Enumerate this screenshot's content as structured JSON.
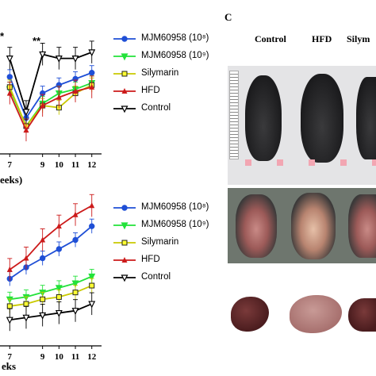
{
  "panel_c": {
    "letter": "C",
    "columns": [
      "Control",
      "HFD",
      "Silym"
    ]
  },
  "legend_top": [
    "MJM60958 (10⁸)",
    "MJM60958 (10⁹)",
    "Silymarin",
    "HFD",
    "Control"
  ],
  "legend_bottom": [
    "MJM60958 (10⁸)",
    "MJM60958 (10⁹)",
    "Silymarin",
    "HFD",
    "Control"
  ],
  "axis_top_title_fragment": "eeks)",
  "axis_bottom_title_fragment": "eks",
  "colors": {
    "mjm_1e8": "#1f4fd6",
    "mjm_1e9": "#22e23a",
    "silymarin": "#c9c900",
    "hfd": "#cc1a1a",
    "control": "#000000"
  },
  "chart_data": [
    {
      "type": "line",
      "title": "",
      "xlabel": "eeks)",
      "ylabel": "",
      "x": [
        7,
        8,
        9,
        10,
        11,
        12
      ],
      "x_tick_labels": [
        "7",
        "9",
        "10",
        "11",
        "12"
      ],
      "annotations": [
        "*",
        "**"
      ],
      "y_unlabeled": true,
      "legend_placement": "right",
      "series": [
        {
          "name": "MJM60958 (10⁸)",
          "values": [
            3.0,
            1.0,
            2.2,
            2.6,
            2.9,
            3.2
          ]
        },
        {
          "name": "MJM60958 (10⁹)",
          "values": [
            2.4,
            0.6,
            1.7,
            2.2,
            2.4,
            2.7
          ]
        },
        {
          "name": "Silymarin",
          "values": [
            2.5,
            0.6,
            1.6,
            1.5,
            2.2,
            2.6
          ]
        },
        {
          "name": "HFD",
          "values": [
            2.2,
            0.4,
            1.6,
            2.0,
            2.3,
            2.5
          ]
        },
        {
          "name": "Control",
          "values": [
            3.9,
            1.3,
            4.1,
            3.9,
            3.9,
            4.2
          ]
        }
      ]
    },
    {
      "type": "line",
      "title": "",
      "xlabel": "eks",
      "ylabel": "",
      "x": [
        7,
        8,
        9,
        10,
        11,
        12
      ],
      "x_tick_labels": [
        "7",
        "9",
        "10",
        "11",
        "12"
      ],
      "y_unlabeled": true,
      "legend_placement": "right",
      "series": [
        {
          "name": "MJM60958 (10⁸)",
          "values": [
            2.6,
            3.1,
            3.5,
            3.9,
            4.3,
            4.9
          ]
        },
        {
          "name": "MJM60958 (10⁹)",
          "values": [
            1.7,
            1.8,
            2.0,
            2.2,
            2.4,
            2.7
          ]
        },
        {
          "name": "Silymarin",
          "values": [
            1.4,
            1.5,
            1.7,
            1.8,
            2.0,
            2.3
          ]
        },
        {
          "name": "HFD",
          "values": [
            3.0,
            3.5,
            4.3,
            4.9,
            5.4,
            5.8
          ]
        },
        {
          "name": "Control",
          "values": [
            0.8,
            0.9,
            1.0,
            1.1,
            1.2,
            1.5
          ]
        }
      ]
    }
  ]
}
